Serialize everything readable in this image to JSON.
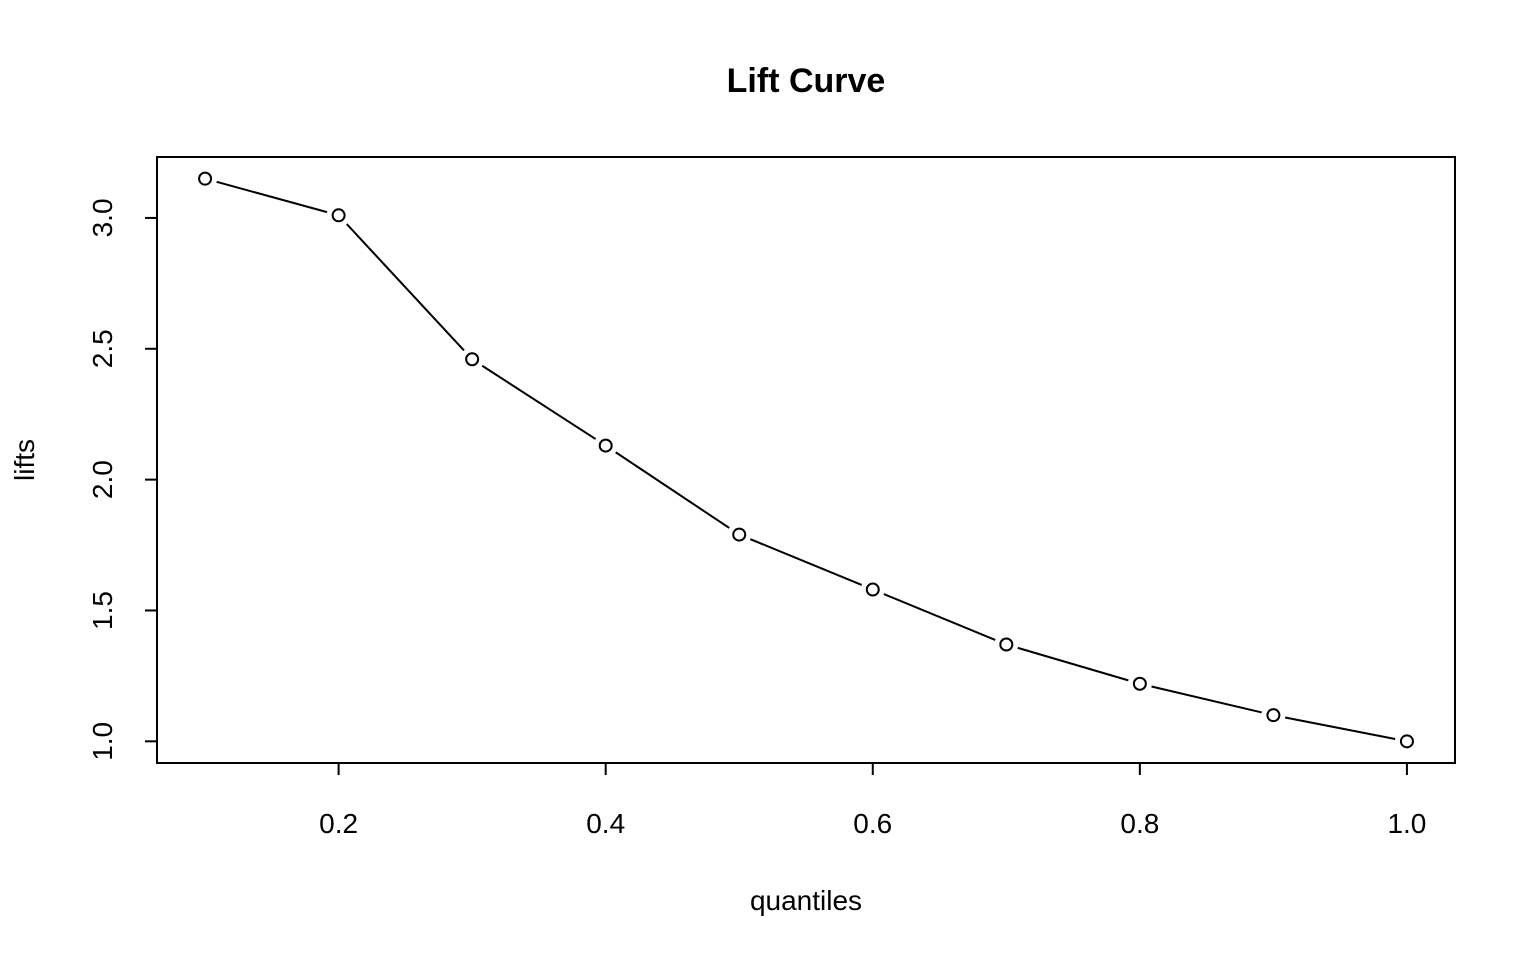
{
  "chart_data": {
    "type": "line",
    "title": "Lift Curve",
    "xlabel": "quantiles",
    "ylabel": "lifts",
    "x": [
      0.1,
      0.2,
      0.3,
      0.4,
      0.5,
      0.6,
      0.7,
      0.8,
      0.9,
      1.0
    ],
    "series": [
      {
        "values": [
          3.15,
          3.01,
          2.46,
          2.13,
          1.79,
          1.58,
          1.37,
          1.22,
          1.1,
          1.0
        ]
      }
    ],
    "xlim": [
      0.064,
      1.036
    ],
    "ylim": [
      0.9172,
      3.2328
    ],
    "xticks": [
      0.2,
      0.4,
      0.6,
      0.8,
      1.0
    ],
    "xtick_labels": [
      "0.2",
      "0.4",
      "0.6",
      "0.8",
      "1.0"
    ],
    "yticks": [
      1.0,
      1.5,
      2.0,
      2.5,
      3.0
    ],
    "ytick_labels": [
      "1.0",
      "1.5",
      "2.0",
      "2.5",
      "3.0"
    ],
    "grid": false,
    "markers": "open-circle",
    "legend": "none"
  }
}
